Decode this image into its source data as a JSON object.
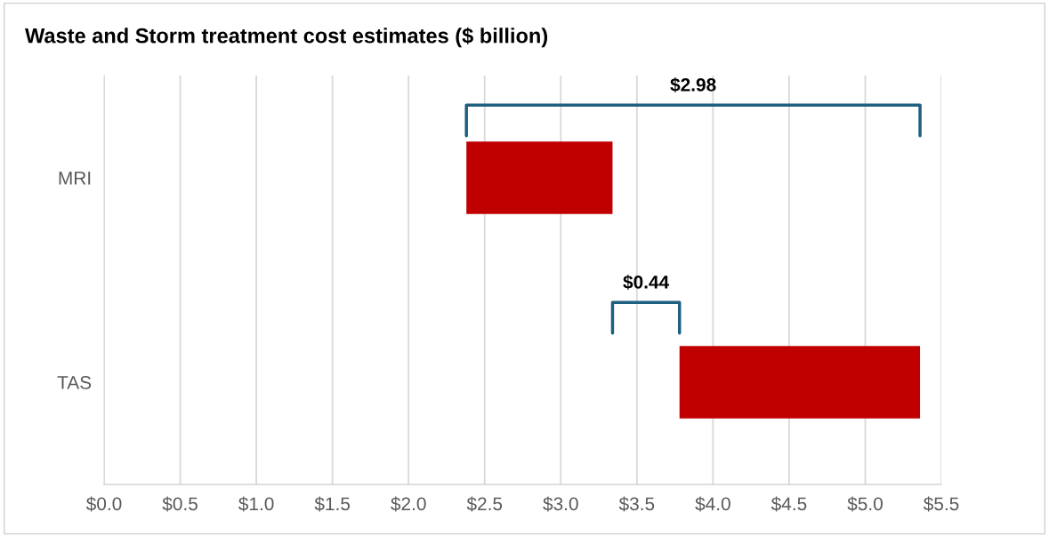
{
  "chart_data": {
    "type": "bar",
    "orientation": "horizontal",
    "title": "Waste and Storm treatment cost estimates ($ billion)",
    "categories": [
      "MRI",
      "TAS"
    ],
    "base": [
      2.38,
      3.78
    ],
    "values": [
      0.96,
      1.58
    ],
    "color": "#c00000",
    "xlim": [
      0,
      5.5
    ],
    "xticks": [
      {
        "value": 0,
        "label": "$0.0"
      },
      {
        "value": 0.5,
        "label": "$0.5"
      },
      {
        "value": 1,
        "label": "$1.0"
      },
      {
        "value": 1.5,
        "label": "$1.5"
      },
      {
        "value": 2,
        "label": "$2.0"
      },
      {
        "value": 2.5,
        "label": "$2.5"
      },
      {
        "value": 3,
        "label": "$3.0"
      },
      {
        "value": 3.5,
        "label": "$3.5"
      },
      {
        "value": 4,
        "label": "$4.0"
      },
      {
        "value": 4.5,
        "label": "$4.5"
      },
      {
        "value": 5,
        "label": "$5.0"
      },
      {
        "value": 5.5,
        "label": "$5.5"
      }
    ],
    "grid": "x",
    "annotations": [
      "$2.98",
      "$0.44"
    ]
  }
}
